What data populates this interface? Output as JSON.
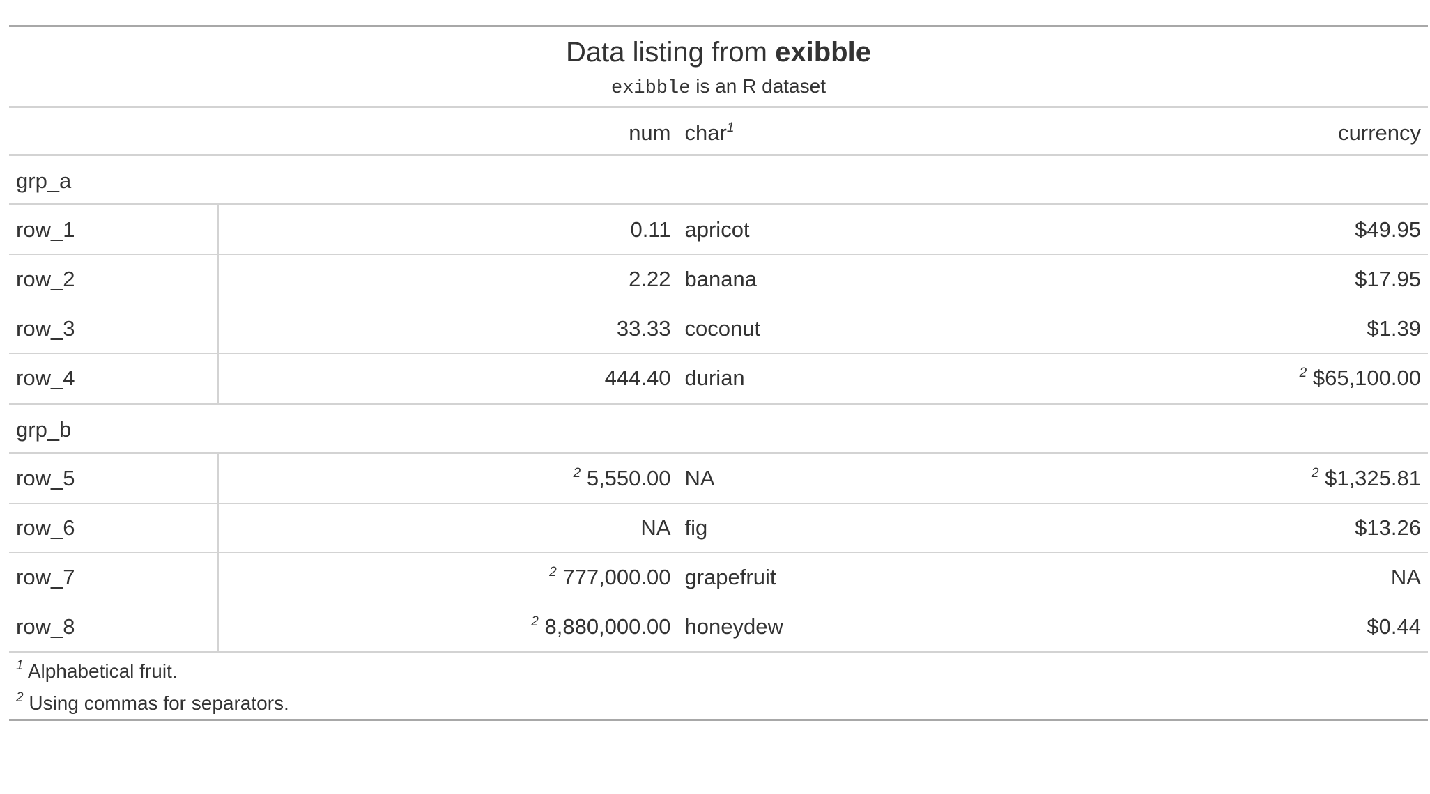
{
  "heading": {
    "title_prefix": "Data listing from ",
    "title_bold": "exibble",
    "subtitle_code": "exibble",
    "subtitle_rest": " is an R dataset"
  },
  "columns": {
    "num": "num",
    "char": "char",
    "char_mark": "1",
    "currency": "currency"
  },
  "groups": [
    {
      "label": "grp_a",
      "rows": [
        {
          "stub": "row_1",
          "num": "0.11",
          "num_mark": "",
          "char": "apricot",
          "currency": "$49.95",
          "currency_mark": ""
        },
        {
          "stub": "row_2",
          "num": "2.22",
          "num_mark": "",
          "char": "banana",
          "currency": "$17.95",
          "currency_mark": ""
        },
        {
          "stub": "row_3",
          "num": "33.33",
          "num_mark": "",
          "char": "coconut",
          "currency": "$1.39",
          "currency_mark": ""
        },
        {
          "stub": "row_4",
          "num": "444.40",
          "num_mark": "",
          "char": "durian",
          "currency": "$65,100.00",
          "currency_mark": "2"
        }
      ]
    },
    {
      "label": "grp_b",
      "rows": [
        {
          "stub": "row_5",
          "num": "5,550.00",
          "num_mark": "2",
          "char": "NA",
          "currency": "$1,325.81",
          "currency_mark": "2"
        },
        {
          "stub": "row_6",
          "num": "NA",
          "num_mark": "",
          "char": "fig",
          "currency": "$13.26",
          "currency_mark": ""
        },
        {
          "stub": "row_7",
          "num": "777,000.00",
          "num_mark": "2",
          "char": "grapefruit",
          "currency": "NA",
          "currency_mark": ""
        },
        {
          "stub": "row_8",
          "num": "8,880,000.00",
          "num_mark": "2",
          "char": "honeydew",
          "currency": "$0.44",
          "currency_mark": ""
        }
      ]
    }
  ],
  "footnotes": [
    {
      "mark": "1",
      "text": "Alphabetical fruit."
    },
    {
      "mark": "2",
      "text": "Using commas for separators."
    }
  ]
}
